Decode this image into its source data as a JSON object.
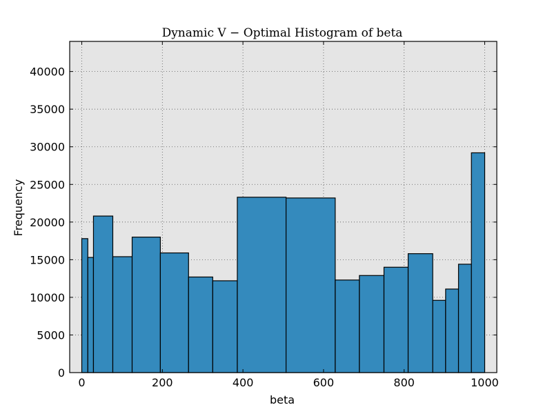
{
  "chart_data": {
    "type": "bar",
    "title": "Dynamic V − Optimal Histogram of beta",
    "xlabel": "beta",
    "ylabel": "Frequency",
    "xlim": [
      -30,
      1030
    ],
    "ylim": [
      0,
      44000
    ],
    "xticks": [
      0,
      200,
      400,
      600,
      800,
      1000
    ],
    "yticks": [
      0,
      5000,
      10000,
      15000,
      20000,
      25000,
      30000,
      35000,
      40000
    ],
    "grid": true,
    "plot_background": "#e5e5e5",
    "bar_color": "#348abd",
    "bins": [
      {
        "x0": 0,
        "x1": 15,
        "value": 17800
      },
      {
        "x0": 15,
        "x1": 29,
        "value": 15300
      },
      {
        "x0": 29,
        "x1": 77,
        "value": 20800
      },
      {
        "x0": 77,
        "x1": 125,
        "value": 15400
      },
      {
        "x0": 125,
        "x1": 195,
        "value": 18000
      },
      {
        "x0": 195,
        "x1": 265,
        "value": 15900
      },
      {
        "x0": 265,
        "x1": 325,
        "value": 12700
      },
      {
        "x0": 325,
        "x1": 386,
        "value": 12200
      },
      {
        "x0": 386,
        "x1": 507,
        "value": 23300
      },
      {
        "x0": 507,
        "x1": 629,
        "value": 23200
      },
      {
        "x0": 629,
        "x1": 689,
        "value": 12300
      },
      {
        "x0": 689,
        "x1": 750,
        "value": 12900
      },
      {
        "x0": 750,
        "x1": 810,
        "value": 14000
      },
      {
        "x0": 810,
        "x1": 871,
        "value": 15800
      },
      {
        "x0": 871,
        "x1": 903,
        "value": 9600
      },
      {
        "x0": 903,
        "x1": 935,
        "value": 11100
      },
      {
        "x0": 935,
        "x1": 967,
        "value": 14400
      },
      {
        "x0": 967,
        "x1": 1000,
        "value": 29200
      }
    ]
  }
}
